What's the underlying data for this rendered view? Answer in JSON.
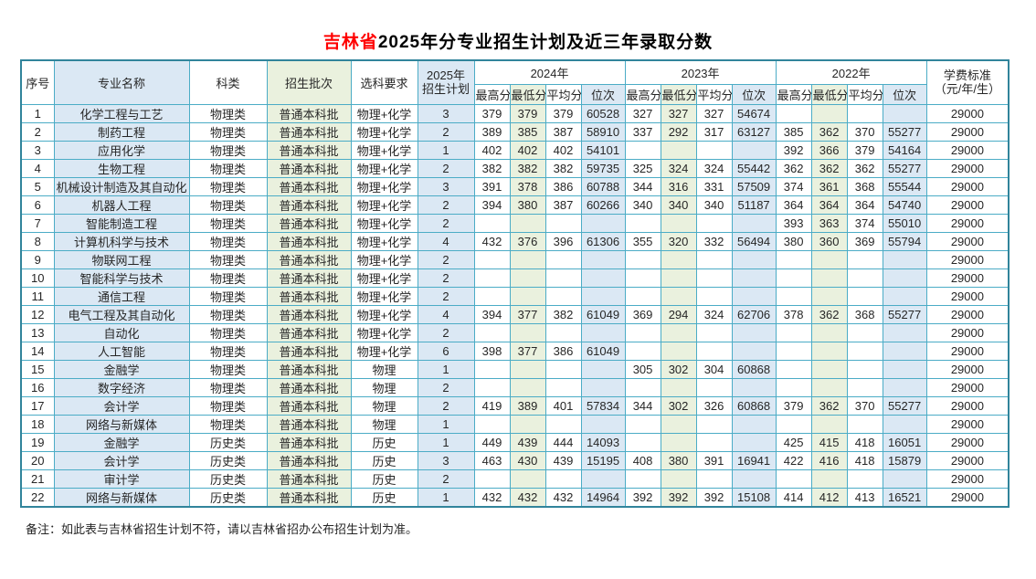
{
  "title": {
    "highlight": "吉林省",
    "rest": "2025年分专业招生计划及近三年录取分数"
  },
  "note": "备注：如此表与吉林省招生计划不符，请以吉林省招办公布招生计划为准。",
  "colors": {
    "accent_blue_bg": "#dbe8f4",
    "accent_green_bg": "#eaf1de",
    "grid_border": "#4bacc6",
    "outer_border": "#31849b",
    "plan_red": "#ff4646",
    "title_red": "#ff0000"
  },
  "table": {
    "headers": {
      "seq": "序号",
      "major": "专业名称",
      "category": "科类",
      "batch": "招生批次",
      "subject_req": "选科要求",
      "plan_line1": "2025年",
      "plan_line2": "招生计划",
      "fee_line1": "学费标准",
      "fee_line2": "（元/年/生）"
    },
    "years": [
      "2024年",
      "2023年",
      "2022年"
    ],
    "year_keys": [
      "2024",
      "2023",
      "2022"
    ],
    "sub_headers": [
      "最高分",
      "最低分",
      "平均分",
      "位次"
    ],
    "rows": [
      {
        "seq": "1",
        "major": "化学工程与工艺",
        "category": "物理类",
        "batch": "普通本科批",
        "req": "物理+化学",
        "plan": "3",
        "scores": [
          "379",
          "379",
          "379",
          "60528",
          "327",
          "327",
          "327",
          "54674",
          "",
          "",
          "",
          ""
        ],
        "fee": "29000"
      },
      {
        "seq": "2",
        "major": "制药工程",
        "category": "物理类",
        "batch": "普通本科批",
        "req": "物理+化学",
        "plan": "2",
        "scores": [
          "389",
          "385",
          "387",
          "58910",
          "337",
          "292",
          "317",
          "63127",
          "385",
          "362",
          "370",
          "55277"
        ],
        "fee": "29000"
      },
      {
        "seq": "3",
        "major": "应用化学",
        "category": "物理类",
        "batch": "普通本科批",
        "req": "物理+化学",
        "plan": "1",
        "scores": [
          "402",
          "402",
          "402",
          "54101",
          "",
          "",
          "",
          "",
          "392",
          "366",
          "379",
          "54164"
        ],
        "fee": "29000"
      },
      {
        "seq": "4",
        "major": "生物工程",
        "category": "物理类",
        "batch": "普通本科批",
        "req": "物理+化学",
        "plan": "2",
        "scores": [
          "382",
          "382",
          "382",
          "59735",
          "325",
          "324",
          "324",
          "55442",
          "362",
          "362",
          "362",
          "55277"
        ],
        "fee": "29000"
      },
      {
        "seq": "5",
        "major": "机械设计制造及其自动化",
        "category": "物理类",
        "batch": "普通本科批",
        "req": "物理+化学",
        "plan": "3",
        "scores": [
          "391",
          "378",
          "386",
          "60788",
          "344",
          "316",
          "331",
          "57509",
          "374",
          "361",
          "368",
          "55544"
        ],
        "fee": "29000"
      },
      {
        "seq": "6",
        "major": "机器人工程",
        "category": "物理类",
        "batch": "普通本科批",
        "req": "物理+化学",
        "plan": "2",
        "scores": [
          "394",
          "380",
          "387",
          "60266",
          "340",
          "340",
          "340",
          "51187",
          "364",
          "364",
          "364",
          "54740"
        ],
        "fee": "29000"
      },
      {
        "seq": "7",
        "major": "智能制造工程",
        "category": "物理类",
        "batch": "普通本科批",
        "req": "物理+化学",
        "plan": "2",
        "scores": [
          "",
          "",
          "",
          "",
          "",
          "",
          "",
          "",
          "393",
          "363",
          "374",
          "55010"
        ],
        "fee": "29000"
      },
      {
        "seq": "8",
        "major": "计算机科学与技术",
        "category": "物理类",
        "batch": "普通本科批",
        "req": "物理+化学",
        "plan": "4",
        "scores": [
          "432",
          "376",
          "396",
          "61306",
          "355",
          "320",
          "332",
          "56494",
          "380",
          "360",
          "369",
          "55794"
        ],
        "fee": "29000"
      },
      {
        "seq": "9",
        "major": "物联网工程",
        "category": "物理类",
        "batch": "普通本科批",
        "req": "物理+化学",
        "plan": "2",
        "scores": [
          "",
          "",
          "",
          "",
          "",
          "",
          "",
          "",
          "",
          "",
          "",
          ""
        ],
        "fee": "29000"
      },
      {
        "seq": "10",
        "major": "智能科学与技术",
        "category": "物理类",
        "batch": "普通本科批",
        "req": "物理+化学",
        "plan": "2",
        "scores": [
          "",
          "",
          "",
          "",
          "",
          "",
          "",
          "",
          "",
          "",
          "",
          ""
        ],
        "fee": "29000"
      },
      {
        "seq": "11",
        "major": "通信工程",
        "category": "物理类",
        "batch": "普通本科批",
        "req": "物理+化学",
        "plan": "2",
        "scores": [
          "",
          "",
          "",
          "",
          "",
          "",
          "",
          "",
          "",
          "",
          "",
          ""
        ],
        "fee": "29000"
      },
      {
        "seq": "12",
        "major": "电气工程及其自动化",
        "category": "物理类",
        "batch": "普通本科批",
        "req": "物理+化学",
        "plan": "4",
        "scores": [
          "394",
          "377",
          "382",
          "61049",
          "369",
          "294",
          "324",
          "62706",
          "378",
          "362",
          "368",
          "55277"
        ],
        "fee": "29000"
      },
      {
        "seq": "13",
        "major": "自动化",
        "category": "物理类",
        "batch": "普通本科批",
        "req": "物理+化学",
        "plan": "2",
        "scores": [
          "",
          "",
          "",
          "",
          "",
          "",
          "",
          "",
          "",
          "",
          "",
          ""
        ],
        "fee": "29000"
      },
      {
        "seq": "14",
        "major": "人工智能",
        "category": "物理类",
        "batch": "普通本科批",
        "req": "物理+化学",
        "plan": "6",
        "scores": [
          "398",
          "377",
          "386",
          "61049",
          "",
          "",
          "",
          "",
          "",
          "",
          "",
          ""
        ],
        "fee": "29000"
      },
      {
        "seq": "15",
        "major": "金融学",
        "category": "物理类",
        "batch": "普通本科批",
        "req": "物理",
        "plan": "1",
        "scores": [
          "",
          "",
          "",
          "",
          "305",
          "302",
          "304",
          "60868",
          "",
          "",
          "",
          ""
        ],
        "fee": "29000"
      },
      {
        "seq": "16",
        "major": "数字经济",
        "category": "物理类",
        "batch": "普通本科批",
        "req": "物理",
        "plan": "2",
        "scores": [
          "",
          "",
          "",
          "",
          "",
          "",
          "",
          "",
          "",
          "",
          "",
          ""
        ],
        "fee": "29000"
      },
      {
        "seq": "17",
        "major": "会计学",
        "category": "物理类",
        "batch": "普通本科批",
        "req": "物理",
        "plan": "2",
        "scores": [
          "419",
          "389",
          "401",
          "57834",
          "344",
          "302",
          "326",
          "60868",
          "379",
          "362",
          "370",
          "55277"
        ],
        "fee": "29000"
      },
      {
        "seq": "18",
        "major": "网络与新媒体",
        "category": "物理类",
        "batch": "普通本科批",
        "req": "物理",
        "plan": "1",
        "scores": [
          "",
          "",
          "",
          "",
          "",
          "",
          "",
          "",
          "",
          "",
          "",
          ""
        ],
        "fee": "29000"
      },
      {
        "seq": "19",
        "major": "金融学",
        "category": "历史类",
        "batch": "普通本科批",
        "req": "历史",
        "plan": "1",
        "scores": [
          "449",
          "439",
          "444",
          "14093",
          "",
          "",
          "",
          "",
          "425",
          "415",
          "418",
          "16051"
        ],
        "fee": "29000"
      },
      {
        "seq": "20",
        "major": "会计学",
        "category": "历史类",
        "batch": "普通本科批",
        "req": "历史",
        "plan": "3",
        "scores": [
          "463",
          "430",
          "439",
          "15195",
          "408",
          "380",
          "391",
          "16941",
          "422",
          "416",
          "418",
          "15879"
        ],
        "fee": "29000"
      },
      {
        "seq": "21",
        "major": "审计学",
        "category": "历史类",
        "batch": "普通本科批",
        "req": "历史",
        "plan": "2",
        "scores": [
          "",
          "",
          "",
          "",
          "",
          "",
          "",
          "",
          "",
          "",
          "",
          ""
        ],
        "fee": "29000"
      },
      {
        "seq": "22",
        "major": "网络与新媒体",
        "category": "历史类",
        "batch": "普通本科批",
        "req": "历史",
        "plan": "1",
        "scores": [
          "432",
          "432",
          "432",
          "14964",
          "392",
          "392",
          "392",
          "15108",
          "414",
          "412",
          "413",
          "16521"
        ],
        "fee": "29000"
      }
    ]
  }
}
